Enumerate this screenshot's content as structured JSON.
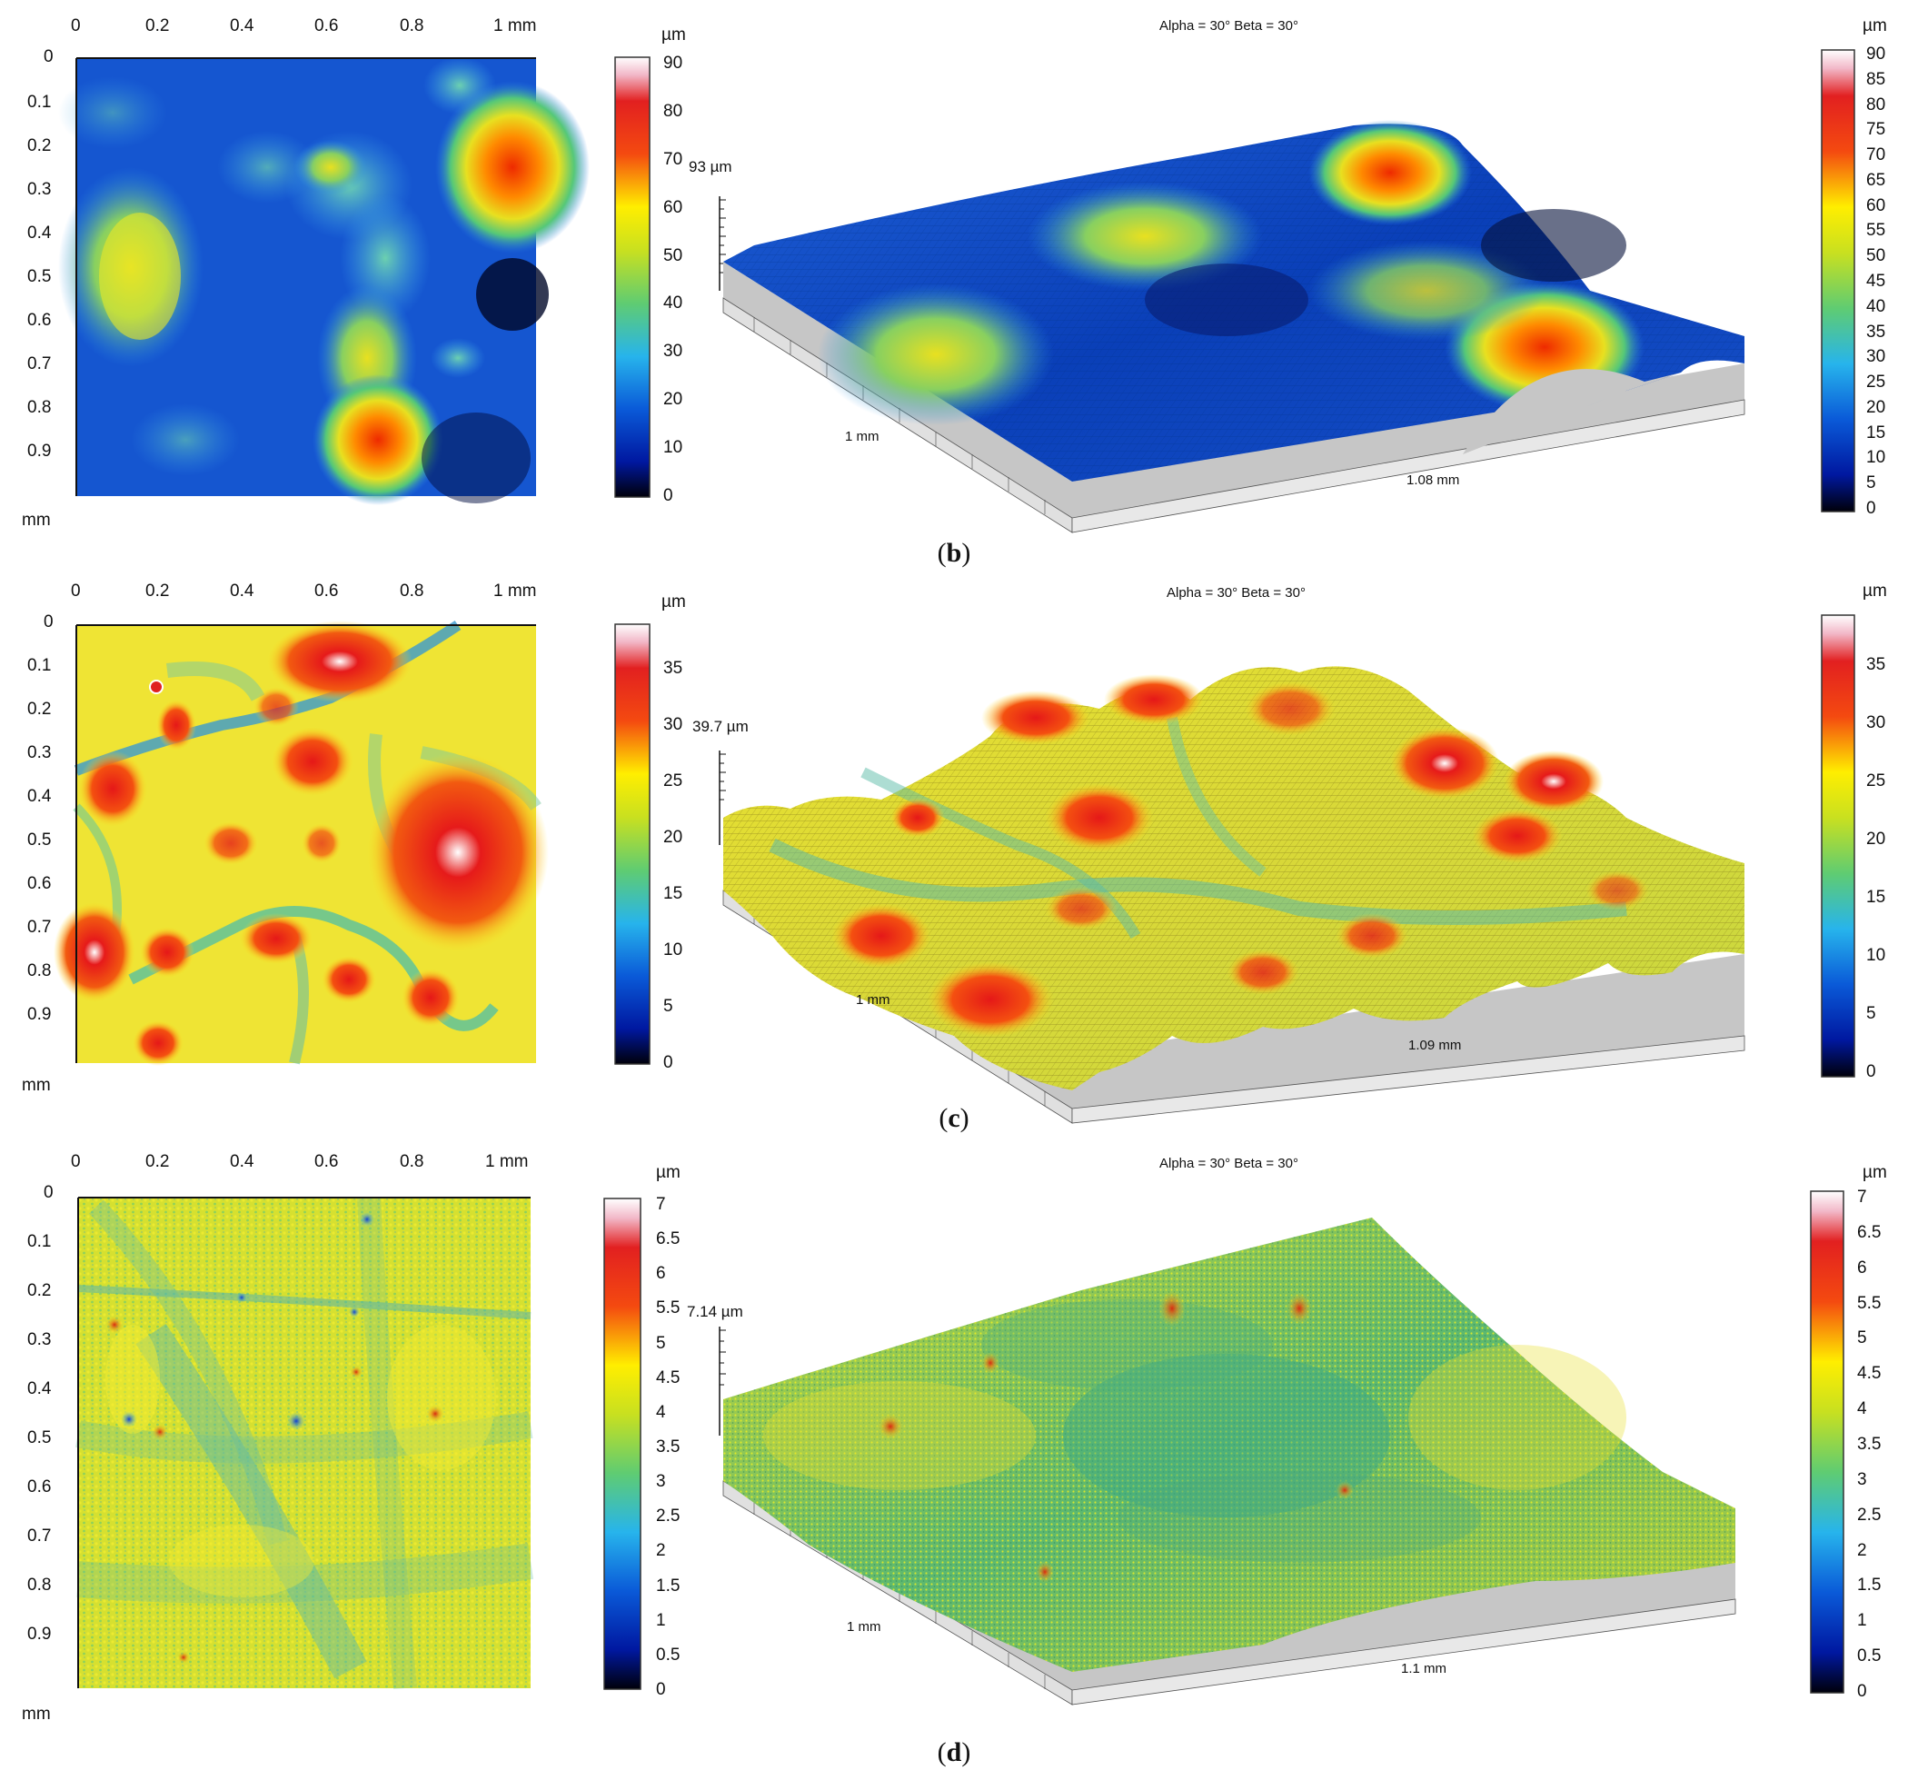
{
  "panels": [
    {
      "id": "b",
      "caption_letter": "b",
      "map": {
        "x_ticks": [
          "0",
          "0.2",
          "0.4",
          "0.6",
          "0.8",
          "1 mm"
        ],
        "y_ticks": [
          "0",
          "0.1",
          "0.2",
          "0.3",
          "0.4",
          "0.5",
          "0.6",
          "0.7",
          "0.8",
          "0.9"
        ],
        "y_unit": "mm",
        "cb_unit": "µm",
        "cb_ticks": [
          "90",
          "80",
          "70",
          "60",
          "50",
          "40",
          "30",
          "20",
          "10",
          "0"
        ]
      },
      "view3d": {
        "angles": "Alpha = 30°        Beta = 30°",
        "height_label": "93 µm",
        "side_label": "1 mm",
        "front_label": "1.08 mm",
        "cb_unit": "µm",
        "cb_ticks": [
          "90",
          "85",
          "80",
          "75",
          "70",
          "65",
          "60",
          "55",
          "50",
          "45",
          "40",
          "35",
          "30",
          "25",
          "20",
          "15",
          "10",
          "5",
          "0"
        ]
      }
    },
    {
      "id": "c",
      "caption_letter": "c",
      "map": {
        "x_ticks": [
          "0",
          "0.2",
          "0.4",
          "0.6",
          "0.8",
          "1 mm"
        ],
        "y_ticks": [
          "0",
          "0.1",
          "0.2",
          "0.3",
          "0.4",
          "0.5",
          "0.6",
          "0.7",
          "0.8",
          "0.9"
        ],
        "y_unit": "mm",
        "cb_unit": "µm",
        "cb_ticks": [
          "35",
          "30",
          "25",
          "20",
          "15",
          "10",
          "5",
          "0"
        ]
      },
      "view3d": {
        "angles": "Alpha = 30°        Beta = 30°",
        "height_label": "39.7 µm",
        "side_label": "1 mm",
        "front_label": "1.09 mm",
        "cb_unit": "µm",
        "cb_ticks": [
          "35",
          "30",
          "25",
          "20",
          "15",
          "10",
          "5",
          "0"
        ]
      }
    },
    {
      "id": "d",
      "caption_letter": "d",
      "map": {
        "x_ticks": [
          "0",
          "0.2",
          "0.4",
          "0.6",
          "0.8",
          "1 mm"
        ],
        "y_ticks": [
          "0",
          "0.1",
          "0.2",
          "0.3",
          "0.4",
          "0.5",
          "0.6",
          "0.7",
          "0.8",
          "0.9"
        ],
        "y_unit": "mm",
        "cb_unit": "µm",
        "cb_ticks": [
          "7",
          "6.5",
          "6",
          "5.5",
          "5",
          "4.5",
          "4",
          "3.5",
          "3",
          "2.5",
          "2",
          "1.5",
          "1",
          "0.5",
          "0"
        ]
      },
      "view3d": {
        "angles": "Alpha = 30°        Beta = 30°",
        "height_label": "7.14 µm",
        "side_label": "1 mm",
        "front_label": "1.1 mm",
        "cb_unit": "µm",
        "cb_ticks": [
          "7",
          "6.5",
          "6",
          "5.5",
          "5",
          "4.5",
          "4",
          "3.5",
          "3",
          "2.5",
          "2",
          "1.5",
          "1",
          "0.5",
          "0"
        ]
      }
    }
  ],
  "colors": {
    "jet_low": "#000010",
    "jet_blue": "#0033cc",
    "jet_cyan": "#33bbee",
    "jet_green": "#66cc66",
    "jet_yellow": "#ffee00",
    "jet_red": "#ee2200",
    "jet_high": "#ffffff",
    "base_grey": "#c8c8c8"
  }
}
